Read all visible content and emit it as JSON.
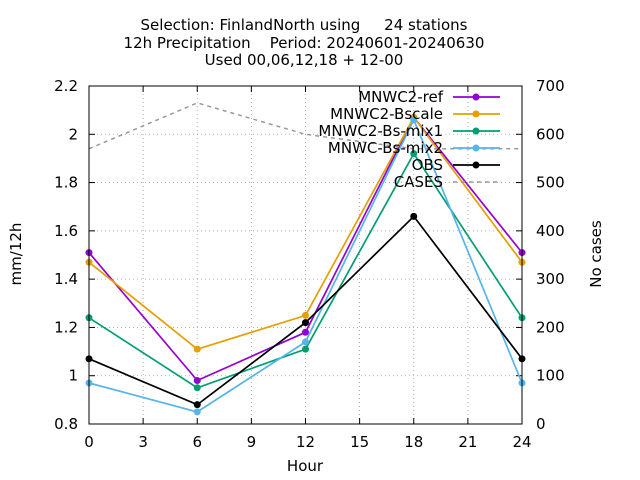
{
  "chart_data": {
    "type": "line",
    "title_lines": [
      "Selection: FinlandNorth using     24 stations",
      "12h Precipitation    Period: 20240601-20240630",
      "Used 00,06,12,18 + 12-00"
    ],
    "xlabel": "Hour",
    "ylabel": "mm/12h",
    "y2label": "No cases",
    "x": [
      0,
      6,
      12,
      18,
      24
    ],
    "xlim": [
      0,
      24
    ],
    "ylim": [
      0.8,
      2.2
    ],
    "y2lim": [
      0,
      700
    ],
    "xticks": [
      "0",
      "3",
      "6",
      "9",
      "12",
      "15",
      "18",
      "21",
      "24"
    ],
    "yticks": [
      "0.8",
      "1",
      "1.2",
      "1.4",
      "1.6",
      "1.8",
      "2",
      "2.2"
    ],
    "y2ticks": [
      "0",
      "100",
      "200",
      "300",
      "400",
      "500",
      "600",
      "700"
    ],
    "grid": true,
    "legend_position": "top-right",
    "series": [
      {
        "name": "MNWC2-ref",
        "color": "#9400d3",
        "marker": "filled-circle",
        "values": [
          1.51,
          0.98,
          1.18,
          2.07,
          1.51
        ]
      },
      {
        "name": "MNWC2-Bscale",
        "color": "#e69f00",
        "marker": "filled-circle",
        "values": [
          1.47,
          1.11,
          1.25,
          2.07,
          1.47
        ]
      },
      {
        "name": "MNWC2-Bs-mix1",
        "color": "#009e73",
        "marker": "filled-circle",
        "values": [
          1.24,
          0.95,
          1.11,
          1.92,
          1.24
        ]
      },
      {
        "name": "MNWC-Bs-mix2",
        "color": "#56b4e9",
        "marker": "filled-circle",
        "values": [
          0.97,
          0.85,
          1.14,
          2.06,
          0.97
        ]
      },
      {
        "name": "OBS",
        "color": "#000000",
        "marker": "filled-circle",
        "values": [
          1.07,
          0.88,
          1.22,
          1.66,
          1.07
        ]
      },
      {
        "name": "CASES",
        "color": "#999999",
        "dashed": true,
        "axis": "y2",
        "values": [
          570,
          665,
          600,
          570,
          570
        ]
      }
    ]
  }
}
